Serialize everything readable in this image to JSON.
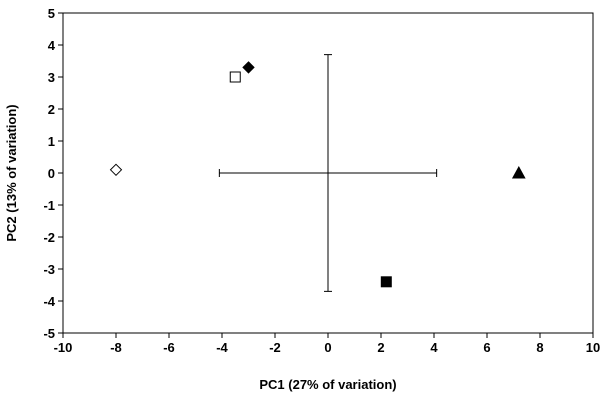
{
  "chart_data": {
    "type": "scatter",
    "x_label": "PC1 (27% of variation)",
    "y_label": "PC2 (13% of variation)",
    "xlim": [
      -10,
      10
    ],
    "xticks": [
      -10,
      -8,
      -6,
      -4,
      -2,
      0,
      2,
      4,
      6,
      8,
      10
    ],
    "ylim": [
      -5,
      5
    ],
    "yticks": [
      -5,
      -4,
      -3,
      -2,
      -1,
      0,
      1,
      2,
      3,
      4,
      5
    ],
    "grid": false,
    "color": "#000000",
    "series": [
      {
        "marker": "diamond",
        "filled": false,
        "x": [
          -8.0
        ],
        "y": [
          0.1
        ]
      },
      {
        "marker": "square",
        "filled": false,
        "x": [
          -3.5
        ],
        "y": [
          3.0
        ]
      },
      {
        "marker": "diamond",
        "filled": true,
        "x": [
          -3.0
        ],
        "y": [
          3.3
        ]
      },
      {
        "marker": "triangle",
        "filled": true,
        "x": [
          7.2
        ],
        "y": [
          0
        ]
      },
      {
        "marker": "square",
        "filled": true,
        "x": [
          2.2
        ],
        "y": [
          -3.4
        ]
      }
    ],
    "error_bar": {
      "x": 0,
      "y": 0,
      "xerr": 4.1,
      "yerr": 3.7
    }
  }
}
